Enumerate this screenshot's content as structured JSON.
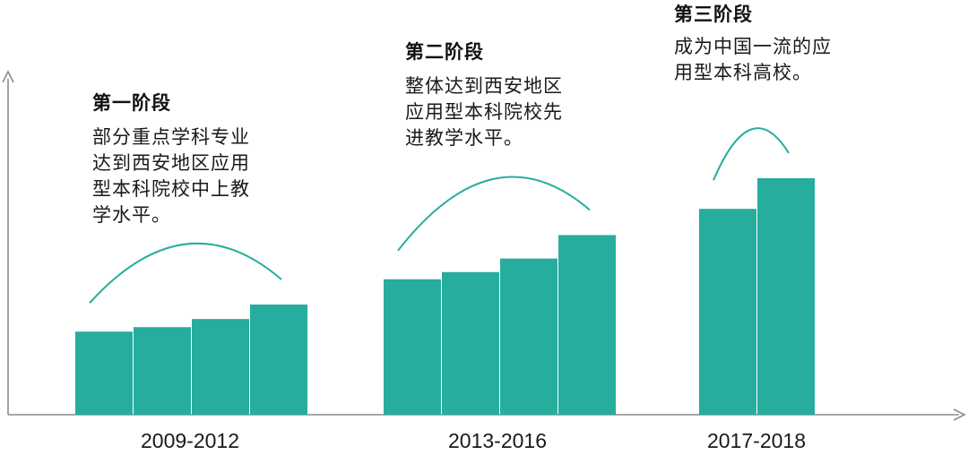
{
  "chart_data": {
    "type": "bar",
    "groups": [
      {
        "period": "2009-2012",
        "stage": "第一阶段",
        "description": "部分重点学科专业\n达到西安地区应用\n型本科院校中上教\n学水平。",
        "values": [
          92,
          97,
          106,
          122
        ]
      },
      {
        "period": "2013-2016",
        "stage": "第二阶段",
        "description": "整体达到西安地区\n应用型本科院校先\n进教学水平。",
        "values": [
          150,
          158,
          173,
          199
        ]
      },
      {
        "period": "2017-2018",
        "stage": "第三阶段",
        "description": "成为中国一流的应\n用型本科高校。",
        "values": [
          228,
          262
        ]
      }
    ],
    "ylim": [
      0,
      380
    ],
    "grid": false,
    "colors": {
      "bar": "#26ad9d",
      "arc": "#26ad9d",
      "axis": "#8c8c8c"
    }
  }
}
